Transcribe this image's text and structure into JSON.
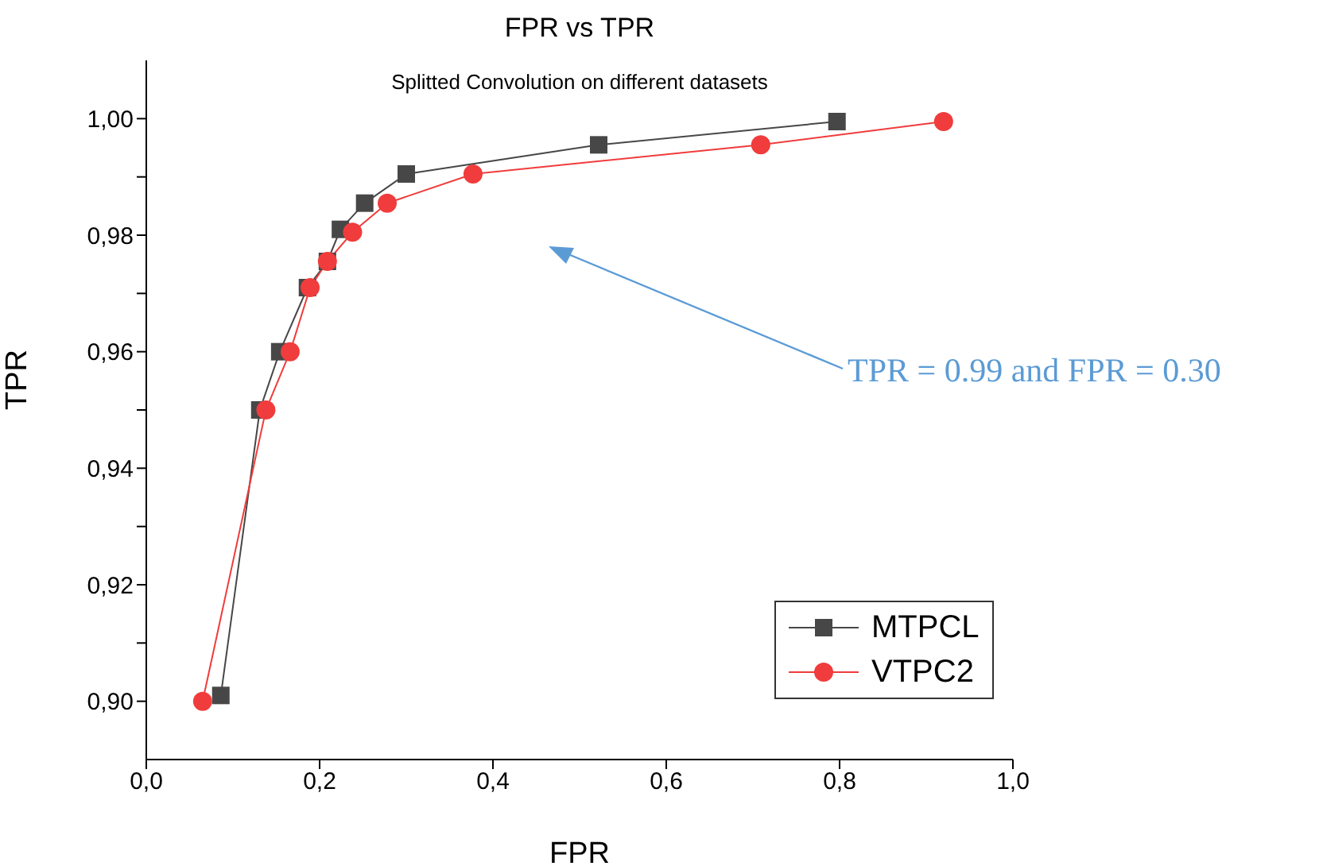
{
  "chart_data": {
    "type": "line",
    "title": "FPR vs TPR",
    "subtitle": "Splitted Convolution on different datasets",
    "xlabel": "FPR",
    "ylabel": "TPR",
    "xlim": [
      0,
      1
    ],
    "ylim": [
      0.89,
      1.01
    ],
    "xticks": [
      {
        "value": 0,
        "label": "0,0"
      },
      {
        "value": 0.2,
        "label": "0,2"
      },
      {
        "value": 0.4,
        "label": "0,4"
      },
      {
        "value": 0.6,
        "label": "0,6"
      },
      {
        "value": 0.8,
        "label": "0,8"
      },
      {
        "value": 1,
        "label": "1,0"
      }
    ],
    "yticks": [
      {
        "value": 0.9,
        "label": "0,90"
      },
      {
        "value": 0.91,
        "label": null
      },
      {
        "value": 0.92,
        "label": "0,92"
      },
      {
        "value": 0.93,
        "label": null
      },
      {
        "value": 0.94,
        "label": "0,94"
      },
      {
        "value": 0.95,
        "label": null
      },
      {
        "value": 0.96,
        "label": "0,96"
      },
      {
        "value": 0.97,
        "label": null
      },
      {
        "value": 0.98,
        "label": "0,98"
      },
      {
        "value": 0.99,
        "label": null
      },
      {
        "value": 1,
        "label": "1,00"
      }
    ],
    "grid": false,
    "legend": "bottom right",
    "line_style": "solid",
    "annotations": [
      "TPR = 0.99 and FPR = 0.30"
    ],
    "series": [
      {
        "name": "MTPCL",
        "color": "#474747",
        "marker": "square",
        "x": [
          0.086,
          0.131,
          0.154,
          0.186,
          0.209,
          0.224,
          0.252,
          0.3,
          0.522,
          0.797
        ],
        "values": [
          0.901,
          0.95,
          0.96,
          0.971,
          0.9755,
          0.981,
          0.9855,
          0.9905,
          0.9955,
          0.9995
        ]
      },
      {
        "name": "VTPC2",
        "color": "#f03c3c",
        "marker": "circle",
        "x": [
          0.065,
          0.138,
          0.166,
          0.189,
          0.209,
          0.238,
          0.278,
          0.377,
          0.709,
          0.92
        ],
        "values": [
          0.9,
          0.95,
          0.96,
          0.971,
          0.9755,
          0.9805,
          0.9855,
          0.9905,
          0.9955,
          0.9995
        ]
      }
    ]
  }
}
